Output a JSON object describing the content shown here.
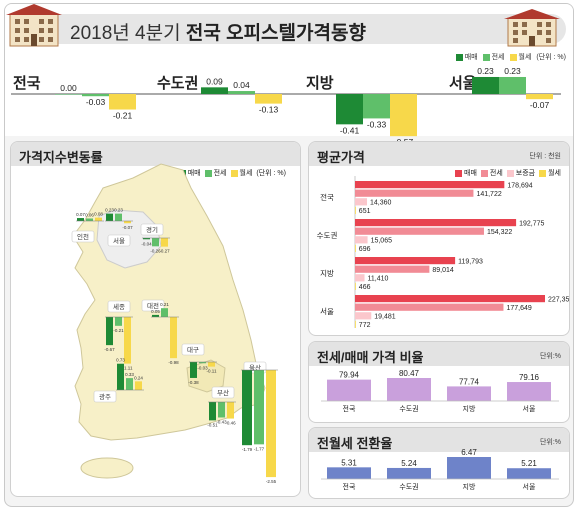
{
  "title": {
    "prefix": "2018년 4분기 ",
    "main": "전국 오피스텔가격동향"
  },
  "legend": {
    "sale": "매매",
    "jeonse": "전세",
    "wolse": "월세",
    "unit": "(단위 : %)"
  },
  "colors": {
    "sale": "#1e8a35",
    "jeonse": "#5fbf6a",
    "wolse": "#f7d84a",
    "avg_sale": "#e8424f",
    "avg_jeonse": "#f18b95",
    "avg_deposit": "#fbc7cc",
    "avg_wolse": "#f7d84a",
    "ratio": "#c9a0dc",
    "conv": "#6e83c9"
  },
  "price_change": {
    "regions": [
      {
        "name": "전국",
        "sale": "0.00",
        "jeonse": "-0.03",
        "wolse": "-0.21"
      },
      {
        "name": "수도권",
        "sale": "0.09",
        "jeonse": "0.04",
        "wolse": "-0.13"
      },
      {
        "name": "지방",
        "sale": "-0.41",
        "jeonse": "-0.33",
        "wolse": "-0.57"
      },
      {
        "name": "서울",
        "sale": "0.23",
        "jeonse": "0.23",
        "wolse": "-0.07"
      }
    ]
  },
  "map_panel": {
    "title": "가격지수변동률",
    "legend": {
      "sale": "매매",
      "jeonse": "전세",
      "wolse": "월세",
      "unit": "(단위 : %)"
    },
    "regions": [
      {
        "name": "인천",
        "sale": "0.07",
        "jeonse": "0.06",
        "wolse": "0.08"
      },
      {
        "name": "서울",
        "sale": "0.23",
        "jeonse": "0.23",
        "wolse": "-0.07"
      },
      {
        "name": "경기",
        "sale": "-0.04",
        "jeonse": "-0.26",
        "wolse": "-0.27"
      },
      {
        "name": "세종",
        "sale": "-0.67",
        "jeonse": "-0.21",
        "wolse": "-1.11"
      },
      {
        "name": "대전",
        "sale": "0.05",
        "jeonse": "0.21",
        "wolse": "-0.98"
      },
      {
        "name": "대구",
        "sale": "-0.38",
        "jeonse": "-0.03",
        "wolse": "-0.11"
      },
      {
        "name": "광주",
        "sale": "0.73",
        "jeonse": "0.33",
        "wolse": "0.24"
      },
      {
        "name": "부산",
        "sale": "-0.51",
        "jeonse": "-0.43",
        "wolse": "-0.46"
      },
      {
        "name": "울산",
        "sale": "-1.79",
        "jeonse": "-1.77",
        "wolse": "-2.55"
      }
    ]
  },
  "avg_price": {
    "title": "평균가격",
    "unit": "단위 : 천원",
    "legend": {
      "sale": "매매",
      "jeonse": "전세",
      "deposit": "보증금",
      "wolse": "월세"
    },
    "regions": [
      {
        "name": "전국",
        "sale": "178,694",
        "jeonse": "141,722",
        "deposit": "14,360",
        "wolse": "651"
      },
      {
        "name": "수도권",
        "sale": "192,775",
        "jeonse": "154,322",
        "deposit": "15,065",
        "wolse": "696"
      },
      {
        "name": "지방",
        "sale": "119,793",
        "jeonse": "89,014",
        "deposit": "11,410",
        "wolse": "466"
      },
      {
        "name": "서울",
        "sale": "227,353",
        "jeonse": "177,649",
        "deposit": "19,481",
        "wolse": "772"
      }
    ]
  },
  "ratio": {
    "title": "전세/매매 가격 비율",
    "unit": "단위:%",
    "regions": [
      {
        "name": "전국",
        "value": "79.94"
      },
      {
        "name": "수도권",
        "value": "80.47"
      },
      {
        "name": "지방",
        "value": "77.74"
      },
      {
        "name": "서울",
        "value": "79.16"
      }
    ]
  },
  "conversion": {
    "title": "전월세 전환율",
    "unit": "단위:%",
    "regions": [
      {
        "name": "전국",
        "value": "5.31"
      },
      {
        "name": "수도권",
        "value": "5.24"
      },
      {
        "name": "지방",
        "value": "6.47"
      },
      {
        "name": "서울",
        "value": "5.21"
      }
    ]
  },
  "chart_data": [
    {
      "type": "bar",
      "categories": [
        "전국",
        "수도권",
        "지방",
        "서울"
      ],
      "series": [
        {
          "name": "매매",
          "values": [
            0.0,
            0.09,
            -0.41,
            0.23
          ]
        },
        {
          "name": "전세",
          "values": [
            -0.03,
            0.04,
            -0.33,
            0.23
          ]
        },
        {
          "name": "월세",
          "values": [
            -0.21,
            -0.13,
            -0.57,
            -0.07
          ]
        }
      ],
      "ylabel": "(단위 : %)"
    },
    {
      "type": "bar",
      "title": "가격지수변동률",
      "categories": [
        "인천",
        "서울",
        "경기",
        "세종",
        "대전",
        "대구",
        "광주",
        "부산",
        "울산"
      ],
      "series": [
        {
          "name": "매매",
          "values": [
            0.07,
            0.23,
            -0.04,
            -0.67,
            0.05,
            -0.38,
            0.73,
            -0.51,
            -1.79
          ]
        },
        {
          "name": "전세",
          "values": [
            0.06,
            0.23,
            -0.26,
            -0.21,
            0.21,
            -0.03,
            0.33,
            -0.43,
            -1.77
          ]
        },
        {
          "name": "월세",
          "values": [
            0.08,
            -0.07,
            -0.27,
            -1.11,
            -0.98,
            -0.11,
            0.24,
            -0.46,
            -2.55
          ]
        }
      ],
      "ylabel": "(단위 : %)"
    },
    {
      "type": "bar",
      "title": "평균가격",
      "categories": [
        "전국",
        "수도권",
        "지방",
        "서울"
      ],
      "series": [
        {
          "name": "매매",
          "values": [
            178694,
            192775,
            119793,
            227353
          ]
        },
        {
          "name": "전세",
          "values": [
            141722,
            154322,
            89014,
            177649
          ]
        },
        {
          "name": "보증금",
          "values": [
            14360,
            15065,
            11410,
            19481
          ]
        },
        {
          "name": "월세",
          "values": [
            651,
            696,
            466,
            772
          ]
        }
      ],
      "ylabel": "단위 : 천원"
    },
    {
      "type": "bar",
      "title": "전세/매매 가격 비율",
      "categories": [
        "전국",
        "수도권",
        "지방",
        "서울"
      ],
      "values": [
        79.94,
        80.47,
        77.74,
        79.16
      ],
      "ylabel": "단위:%"
    },
    {
      "type": "bar",
      "title": "전월세 전환율",
      "categories": [
        "전국",
        "수도권",
        "지방",
        "서울"
      ],
      "values": [
        5.31,
        5.24,
        6.47,
        5.21
      ],
      "ylabel": "단위:%"
    }
  ]
}
